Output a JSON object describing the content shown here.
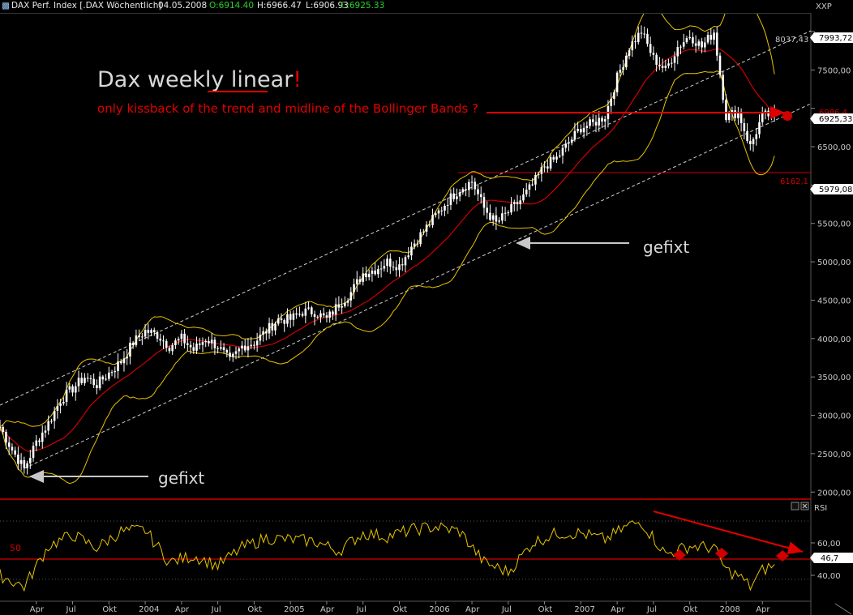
{
  "header": {
    "title": "DAX Perf. Index [.DAX  Wöchentlich]",
    "date": "04.05.2008",
    "open": "O:6914.40",
    "high": "H:6966.47",
    "low": "L:6906.93",
    "close": "C:6925.33",
    "icon": "chart-icon"
  },
  "window_buttons": [
    "restore-icon",
    "close-icon"
  ],
  "annotations": {
    "headline_plain": "Dax weekly",
    "headline_underlined": "linear",
    "headline_excl": "!",
    "subtitle": "only kissback of the trend and midline of the Bollinger Bands ?",
    "gefixt_top": "gefixt",
    "gefixt_bottom": "gefixt"
  },
  "price_labels": {
    "symbol": "XXP",
    "last_close": "6925,33",
    "last_close_hidden": "6986,4",
    "level_upper": "7993,72",
    "level_upper_ref": "8037,43",
    "level_lower": "5979,08",
    "level_hline": "6162,1"
  },
  "rsi_labels": {
    "title": "RSI",
    "value": "46,7",
    "mid_label": "50"
  },
  "colors": {
    "price": "#ffffff",
    "bollinger": "#e8c400",
    "midline": "#d00000",
    "annotation": "#e00000",
    "rsi": "#e8c400",
    "trendline": "#cfcfcf",
    "arrow": "#c8c8c8"
  },
  "chart_data": [
    {
      "type": "line",
      "subtype": "weekly OHLC with Bollinger Bands and trend channel",
      "title": "DAX Perf. Index [.DAX  Wöchentlich]",
      "y_ticks": [
        2000,
        2500,
        3000,
        3500,
        4000,
        4500,
        5000,
        5500,
        6000,
        6500,
        7000,
        7500,
        8000
      ],
      "y_tick_labels": [
        "2000,00",
        "2500,00",
        "3000,00",
        "3500,00",
        "4000,00",
        "4500,00",
        "5000,00",
        "5500,00",
        "",
        "6500,00",
        "",
        "7500,00",
        ""
      ],
      "ylim": [
        1950,
        8200
      ],
      "x_ticks": [
        "Apr",
        "Jul",
        "Okt",
        "2004",
        "Apr",
        "Jul",
        "Okt",
        "2005",
        "Apr",
        "Jul",
        "Okt",
        "2006",
        "Apr",
        "Jul",
        "Okt",
        "2007",
        "Apr",
        "Jul",
        "Okt",
        "2008",
        "Apr"
      ],
      "xlim": [
        "2003-01",
        "2008-07"
      ],
      "close_series": [
        [
          "2003-01",
          2850
        ],
        [
          "2003-02",
          2550
        ],
        [
          "2003-03",
          2300
        ],
        [
          "2003-04",
          2650
        ],
        [
          "2003-05",
          2900
        ],
        [
          "2003-06",
          3200
        ],
        [
          "2003-07",
          3350
        ],
        [
          "2003-08",
          3500
        ],
        [
          "2003-09",
          3400
        ],
        [
          "2003-10",
          3550
        ],
        [
          "2003-11",
          3700
        ],
        [
          "2003-12",
          3950
        ],
        [
          "2004-01",
          4100
        ],
        [
          "2004-02",
          4050
        ],
        [
          "2004-03",
          3900
        ],
        [
          "2004-04",
          4000
        ],
        [
          "2004-05",
          3850
        ],
        [
          "2004-06",
          4000
        ],
        [
          "2004-07",
          3900
        ],
        [
          "2004-08",
          3700
        ],
        [
          "2004-09",
          3900
        ],
        [
          "2004-10",
          3950
        ],
        [
          "2004-11",
          4100
        ],
        [
          "2004-12",
          4250
        ],
        [
          "2005-01",
          4250
        ],
        [
          "2005-02",
          4350
        ],
        [
          "2005-03",
          4350
        ],
        [
          "2005-04",
          4250
        ],
        [
          "2005-05",
          4450
        ],
        [
          "2005-06",
          4600
        ],
        [
          "2005-07",
          4850
        ],
        [
          "2005-08",
          4900
        ],
        [
          "2005-09",
          5000
        ],
        [
          "2005-10",
          4950
        ],
        [
          "2005-11",
          5200
        ],
        [
          "2005-12",
          5400
        ],
        [
          "2006-01",
          5600
        ],
        [
          "2006-02",
          5800
        ],
        [
          "2006-03",
          5950
        ],
        [
          "2006-04",
          6050
        ],
        [
          "2006-05",
          5700
        ],
        [
          "2006-06",
          5500
        ],
        [
          "2006-07",
          5650
        ],
        [
          "2006-08",
          5800
        ],
        [
          "2006-09",
          6000
        ],
        [
          "2006-10",
          6250
        ],
        [
          "2006-11",
          6350
        ],
        [
          "2006-12",
          6550
        ],
        [
          "2007-01",
          6750
        ],
        [
          "2007-02",
          6800
        ],
        [
          "2007-03",
          6900
        ],
        [
          "2007-04",
          7400
        ],
        [
          "2007-05",
          7800
        ],
        [
          "2007-06",
          8000
        ],
        [
          "2007-07",
          7650
        ],
        [
          "2007-08",
          7500
        ],
        [
          "2007-09",
          7800
        ],
        [
          "2007-10",
          7950
        ],
        [
          "2007-11",
          7800
        ],
        [
          "2007-12",
          8000
        ],
        [
          "2008-01",
          6900
        ],
        [
          "2008-02",
          6950
        ],
        [
          "2008-03",
          6500
        ],
        [
          "2008-04",
          6900
        ],
        [
          "2008-05",
          6925
        ]
      ],
      "horizontal_line": 6162.1,
      "annotation_level": 6986
    },
    {
      "type": "line",
      "title": "RSI",
      "y_ticks": [
        40,
        60
      ],
      "y_tick_labels": [
        "40,00",
        "60,00"
      ],
      "midline": 50,
      "ylim": [
        25,
        85
      ],
      "last_value": 46.7,
      "series": [
        [
          "2003-01",
          40
        ],
        [
          "2003-03",
          33
        ],
        [
          "2003-05",
          58
        ],
        [
          "2003-07",
          65
        ],
        [
          "2003-09",
          57
        ],
        [
          "2003-11",
          67
        ],
        [
          "2004-01",
          68
        ],
        [
          "2004-03",
          48
        ],
        [
          "2004-05",
          52
        ],
        [
          "2004-07",
          46
        ],
        [
          "2004-09",
          57
        ],
        [
          "2004-11",
          63
        ],
        [
          "2005-01",
          62
        ],
        [
          "2005-03",
          61
        ],
        [
          "2005-05",
          55
        ],
        [
          "2005-07",
          66
        ],
        [
          "2005-09",
          64
        ],
        [
          "2005-11",
          68
        ],
        [
          "2006-01",
          70
        ],
        [
          "2006-03",
          67
        ],
        [
          "2006-05",
          48
        ],
        [
          "2006-07",
          42
        ],
        [
          "2006-09",
          60
        ],
        [
          "2006-11",
          66
        ],
        [
          "2007-01",
          66
        ],
        [
          "2007-03",
          62
        ],
        [
          "2007-05",
          71
        ],
        [
          "2007-06",
          73
        ],
        [
          "2007-08",
          53
        ],
        [
          "2007-10",
          58
        ],
        [
          "2007-12",
          57
        ],
        [
          "2008-01",
          43
        ],
        [
          "2008-02",
          40
        ],
        [
          "2008-03",
          33
        ],
        [
          "2008-04",
          43
        ],
        [
          "2008-05",
          46.7
        ]
      ]
    }
  ]
}
